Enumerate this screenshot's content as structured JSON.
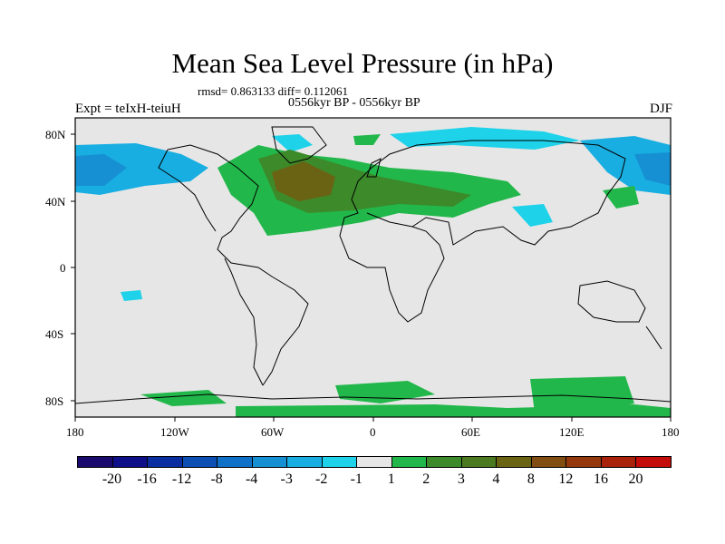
{
  "title": "Mean Sea Level Pressure (in hPa)",
  "stats": "rmsd= 0.863133 diff= 0.112061",
  "period": "0556kyr BP - 0556kyr BP",
  "experiment": "Expt = teIxH-teiuH",
  "season": "DJF",
  "lat_labels": [
    "80N",
    "40N",
    "0",
    "40S",
    "80S"
  ],
  "lon_labels": [
    "180",
    "120W",
    "60W",
    "0",
    "60E",
    "120E",
    "180"
  ],
  "colorbar": {
    "colors": [
      "#1a0a6e",
      "#100f8a",
      "#0a2ea0",
      "#0d4fb5",
      "#0f70c7",
      "#1690d3",
      "#19aee1",
      "#1ed2ea",
      "#e6e6e6",
      "#22b74a",
      "#3c8a2a",
      "#4c7a20",
      "#6b6314",
      "#824d12",
      "#95380e",
      "#a8220c",
      "#c40c0a"
    ],
    "labels": [
      "-20",
      "-16",
      "-12",
      "-8",
      "-4",
      "-3",
      "-2",
      "-1",
      "1",
      "2",
      "3",
      "4",
      "8",
      "12",
      "16",
      "20"
    ]
  }
}
